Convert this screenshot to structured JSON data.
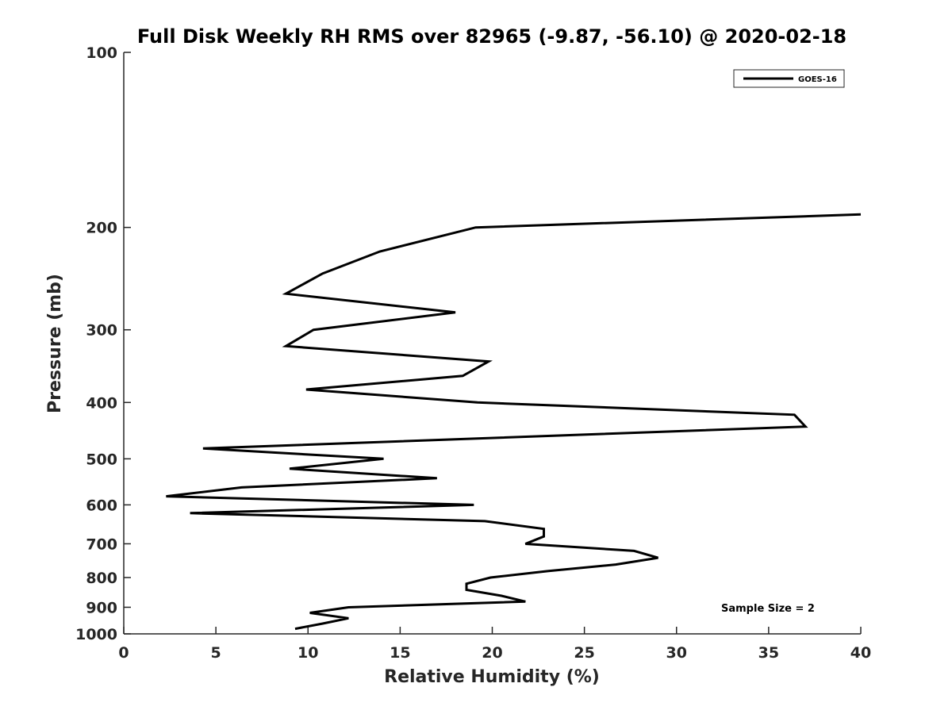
{
  "chart_data": {
    "type": "line",
    "title": "Full Disk Weekly RH RMS over 82965 (-9.87, -56.10) @ 2020-02-18",
    "xlabel": "Relative Humidity (%)",
    "ylabel": "Pressure (mb)",
    "xlim": [
      0,
      40
    ],
    "ylim": [
      100,
      1000
    ],
    "y_scale": "log",
    "y_reversed": true,
    "grid": false,
    "legend_position": "top-right",
    "x_ticks": [
      "0",
      "5",
      "10",
      "15",
      "20",
      "25",
      "30",
      "35",
      "40"
    ],
    "y_ticks": [
      "100",
      "200",
      "300",
      "400",
      "500",
      "600",
      "700",
      "800",
      "900",
      "1000"
    ],
    "series": [
      {
        "name": "GOES-16",
        "color": "#000000",
        "points": [
          {
            "x": 40.0,
            "y": 190
          },
          {
            "x": 19.1,
            "y": 200
          },
          {
            "x": 13.9,
            "y": 220
          },
          {
            "x": 10.8,
            "y": 240
          },
          {
            "x": 8.8,
            "y": 260
          },
          {
            "x": 18.0,
            "y": 280
          },
          {
            "x": 10.3,
            "y": 300
          },
          {
            "x": 8.8,
            "y": 320
          },
          {
            "x": 19.8,
            "y": 340
          },
          {
            "x": 18.4,
            "y": 360
          },
          {
            "x": 9.9,
            "y": 380
          },
          {
            "x": 19.2,
            "y": 400
          },
          {
            "x": 36.4,
            "y": 420
          },
          {
            "x": 37.0,
            "y": 440
          },
          {
            "x": 4.3,
            "y": 480
          },
          {
            "x": 14.1,
            "y": 500
          },
          {
            "x": 9.0,
            "y": 520
          },
          {
            "x": 17.0,
            "y": 540
          },
          {
            "x": 6.4,
            "y": 560
          },
          {
            "x": 2.3,
            "y": 580
          },
          {
            "x": 19.0,
            "y": 600
          },
          {
            "x": 3.6,
            "y": 620
          },
          {
            "x": 19.6,
            "y": 640
          },
          {
            "x": 22.8,
            "y": 660
          },
          {
            "x": 22.8,
            "y": 680
          },
          {
            "x": 21.8,
            "y": 700
          },
          {
            "x": 27.7,
            "y": 720
          },
          {
            "x": 29.0,
            "y": 740
          },
          {
            "x": 26.7,
            "y": 760
          },
          {
            "x": 23.0,
            "y": 780
          },
          {
            "x": 19.9,
            "y": 800
          },
          {
            "x": 18.6,
            "y": 820
          },
          {
            "x": 18.6,
            "y": 840
          },
          {
            "x": 20.5,
            "y": 860
          },
          {
            "x": 21.8,
            "y": 880
          },
          {
            "x": 12.2,
            "y": 900
          },
          {
            "x": 10.1,
            "y": 920
          },
          {
            "x": 12.2,
            "y": 940
          },
          {
            "x": 10.8,
            "y": 960
          },
          {
            "x": 9.3,
            "y": 980
          }
        ]
      }
    ],
    "annotations": [
      "Sample Size = 2"
    ]
  }
}
